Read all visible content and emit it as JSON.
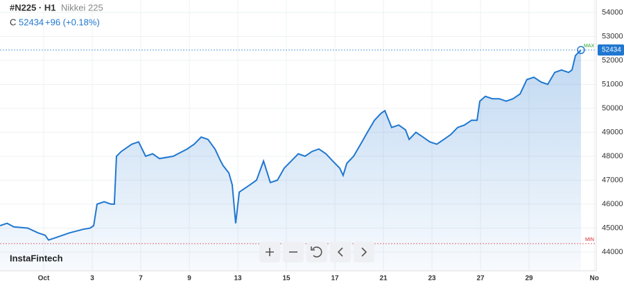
{
  "chart_data": {
    "type": "area",
    "title": "#N225 · H1",
    "subtitle": "Nikkei 225",
    "close_label": "C",
    "close": 52434,
    "change": "+96 (+0.18%)",
    "brand": "InstaFintech",
    "max_label": "MAX",
    "min_label": "MIN",
    "min_line": 44350,
    "color": "#1f77d0",
    "grid": true,
    "x": [
      -1.8,
      -1.51,
      -1.23,
      -0.66,
      -0.23,
      0.06,
      0.2,
      0.49,
      1.06,
      1.63,
      1.91,
      2.06,
      2.2,
      2.49,
      2.77,
      2.91,
      3,
      3.2,
      3.63,
      3.91,
      4.2,
      4.49,
      4.77,
      5.34,
      5.91,
      6.2,
      6.49,
      6.77,
      7.06,
      7.29,
      7.4,
      7.63,
      7.77,
      7.91,
      8.06,
      8.49,
      8.77,
      9.06,
      9.34,
      9.63,
      9.91,
      10.2,
      10.49,
      10.77,
      11.06,
      11.34,
      11.63,
      11.91,
      12.2,
      12.34,
      12.49,
      12.77,
      13.06,
      13.34,
      13.63,
      13.91,
      14.06,
      14.34,
      14.63,
      14.91,
      15.06,
      15.34,
      15.63,
      15.91,
      16.2,
      16.49,
      16.77,
      17.06,
      17.34,
      17.63,
      17.86,
      17.97,
      18.2,
      18.49,
      18.77,
      19.06,
      19.34,
      19.63,
      19.91,
      20.2,
      20.49,
      20.77,
      21.06,
      21.34,
      21.63,
      21.77,
      21.91,
      22.14
    ],
    "values": [
      45100,
      45200,
      45050,
      45000,
      44800,
      44700,
      44500,
      44600,
      44800,
      44950,
      45000,
      45100,
      46000,
      46100,
      46000,
      46000,
      48000,
      48200,
      48500,
      48600,
      48000,
      48100,
      47900,
      48000,
      48300,
      48500,
      48800,
      48700,
      48300,
      47800,
      47600,
      47300,
      46800,
      45200,
      46500,
      46800,
      47000,
      47800,
      46900,
      47000,
      47500,
      47800,
      48100,
      48000,
      48200,
      48300,
      48100,
      47800,
      47500,
      47200,
      47700,
      48000,
      48500,
      49000,
      49500,
      49800,
      49900,
      49200,
      49300,
      49100,
      48700,
      49000,
      48800,
      48600,
      48500,
      48700,
      48900,
      49200,
      49300,
      49500,
      49500,
      50300,
      50500,
      50400,
      50400,
      50300,
      50400,
      50600,
      51200,
      51300,
      51100,
      51000,
      51500,
      51600,
      51500,
      51600,
      52200,
      52434
    ],
    "xlim": [
      -1.8,
      22.77
    ],
    "xticks": [
      {
        "value": 0,
        "label": "Oct"
      },
      {
        "value": 2,
        "label": "3"
      },
      {
        "value": 4,
        "label": "7"
      },
      {
        "value": 6,
        "label": "9"
      },
      {
        "value": 8,
        "label": "13"
      },
      {
        "value": 10,
        "label": "15"
      },
      {
        "value": 12,
        "label": "17"
      },
      {
        "value": 14,
        "label": "21"
      },
      {
        "value": 16,
        "label": "23"
      },
      {
        "value": 18,
        "label": "27"
      },
      {
        "value": 20,
        "label": "29"
      },
      {
        "value": 22.69,
        "label": "No"
      }
    ],
    "ylim": [
      43217,
      54522
    ],
    "yticks": [
      44000,
      45000,
      46000,
      47000,
      48000,
      49000,
      50000,
      51000,
      52000,
      53000,
      54000
    ]
  }
}
